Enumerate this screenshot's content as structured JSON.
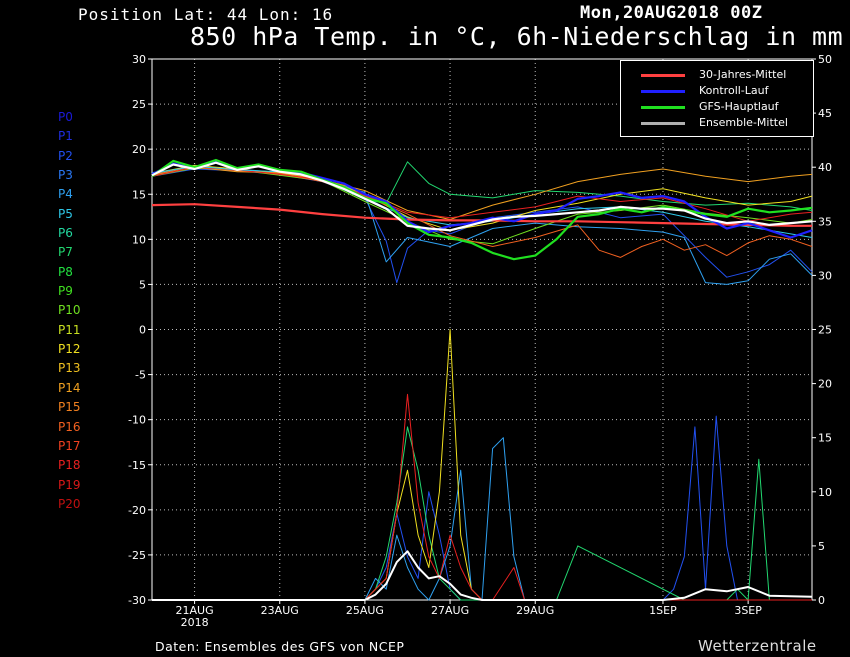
{
  "header": {
    "position": "Position   Lat: 44 Lon: 16",
    "run_date": "Mon,20AUG2018 00Z",
    "title": "850 hPa Temp. in °C, 6h-Niederschlag in mm"
  },
  "members": [
    {
      "label": "P0",
      "color": "#1a1ad8"
    },
    {
      "label": "P1",
      "color": "#1f2ee0"
    },
    {
      "label": "P2",
      "color": "#2250f0"
    },
    {
      "label": "P3",
      "color": "#2a78f5"
    },
    {
      "label": "P4",
      "color": "#2ea0f0"
    },
    {
      "label": "P5",
      "color": "#2ec8e8"
    },
    {
      "label": "P6",
      "color": "#22d8a0"
    },
    {
      "label": "P7",
      "color": "#22d870"
    },
    {
      "label": "P8",
      "color": "#22e040"
    },
    {
      "label": "P9",
      "color": "#40e020"
    },
    {
      "label": "P10",
      "color": "#70e020"
    },
    {
      "label": "P11",
      "color": "#c8e020"
    },
    {
      "label": "P12",
      "color": "#f0e020"
    },
    {
      "label": "P13",
      "color": "#f0c020"
    },
    {
      "label": "P14",
      "color": "#f0a020"
    },
    {
      "label": "P15",
      "color": "#f08020"
    },
    {
      "label": "P16",
      "color": "#f06020"
    },
    {
      "label": "P17",
      "color": "#f04020"
    },
    {
      "label": "P18",
      "color": "#e82020"
    },
    {
      "label": "P19",
      "color": "#d81818"
    },
    {
      "label": "P20",
      "color": "#c01010"
    }
  ],
  "legend": [
    {
      "label": "30-Jahres-Mittel",
      "color": "#ff4040"
    },
    {
      "label": "Kontroll-Lauf",
      "color": "#2020ff"
    },
    {
      "label": "GFS-Hauptlauf",
      "color": "#20e020"
    },
    {
      "label": "Ensemble-Mittel",
      "color": "#b0b0b0"
    }
  ],
  "footer": {
    "credit": "Daten: Ensembles des GFS von NCEP",
    "brand": "Wetterzentrale"
  },
  "chart_data": {
    "type": "line",
    "left_axis": {
      "unit": "°C",
      "ylim": [
        -30,
        30
      ],
      "ticks": [
        30,
        25,
        20,
        15,
        10,
        5,
        0,
        -5,
        -10,
        -15,
        -20,
        -25,
        -30
      ]
    },
    "right_axis": {
      "unit": "mm",
      "ylim": [
        0,
        50
      ],
      "ticks": [
        50,
        45,
        40,
        35,
        30,
        25,
        20,
        15,
        10,
        5,
        0
      ]
    },
    "x_range_hours": [
      0,
      372
    ],
    "x_ticks": [
      {
        "label": "21AUG",
        "sub": "2018",
        "hour": 24
      },
      {
        "label": "23AUG",
        "sub": "",
        "hour": 72
      },
      {
        "label": "25AUG",
        "sub": "",
        "hour": 120
      },
      {
        "label": "27AUG",
        "sub": "",
        "hour": 168
      },
      {
        "label": "29AUG",
        "sub": "",
        "hour": 216
      },
      {
        "label": "1SEP",
        "sub": "",
        "hour": 288
      },
      {
        "label": "3SEP",
        "sub": "",
        "hour": 336
      }
    ],
    "grid": true,
    "legend_position": "top-right",
    "series": [
      {
        "name": "30-Jahres-Mittel",
        "axis": "temp",
        "color": "#ff4040",
        "width": 2.2,
        "x": [
          0,
          24,
          48,
          72,
          96,
          120,
          144,
          168,
          192,
          216,
          240,
          264,
          288,
          312,
          336,
          360,
          372
        ],
        "y": [
          13.8,
          13.9,
          13.6,
          13.3,
          12.8,
          12.4,
          12.2,
          12.1,
          12.1,
          12.0,
          12.0,
          11.9,
          11.8,
          11.7,
          11.6,
          11.5,
          11.5
        ]
      },
      {
        "name": "Kontroll-Lauf",
        "axis": "temp",
        "color": "#2020ff",
        "width": 2.2,
        "x": [
          0,
          12,
          24,
          36,
          48,
          60,
          72,
          84,
          96,
          108,
          120,
          132,
          144,
          156,
          168,
          180,
          192,
          204,
          216,
          228,
          240,
          252,
          264,
          276,
          288,
          300,
          312,
          324,
          336,
          348,
          360,
          372
        ],
        "y": [
          17.2,
          18.4,
          17.9,
          18.6,
          17.8,
          18.2,
          17.6,
          17.4,
          16.8,
          16.2,
          15.0,
          14.2,
          12.0,
          10.8,
          11.5,
          11.8,
          12.4,
          12.0,
          12.8,
          13.2,
          14.5,
          14.8,
          15.2,
          14.6,
          14.8,
          14.2,
          12.5,
          11.2,
          11.8,
          11.0,
          10.2,
          11.0
        ]
      },
      {
        "name": "GFS-Hauptlauf",
        "axis": "temp",
        "color": "#20e020",
        "width": 2.2,
        "x": [
          0,
          12,
          24,
          36,
          48,
          60,
          72,
          84,
          96,
          108,
          120,
          132,
          144,
          156,
          168,
          180,
          192,
          204,
          216,
          228,
          240,
          252,
          264,
          276,
          288,
          300,
          312,
          324,
          336,
          348,
          360,
          372
        ],
        "y": [
          17.0,
          18.7,
          18.0,
          18.8,
          17.9,
          18.3,
          17.7,
          17.5,
          16.6,
          15.8,
          14.6,
          14.0,
          11.8,
          10.5,
          10.2,
          9.6,
          8.5,
          7.8,
          8.2,
          10.0,
          12.5,
          12.8,
          13.4,
          13.0,
          13.6,
          13.2,
          12.8,
          12.5,
          13.4,
          13.0,
          13.2,
          13.5
        ]
      },
      {
        "name": "Ensemble-Mittel",
        "axis": "temp",
        "color": "#ffffff",
        "width": 2.2,
        "x": [
          0,
          12,
          24,
          36,
          48,
          60,
          72,
          84,
          96,
          108,
          120,
          132,
          144,
          156,
          168,
          180,
          192,
          204,
          216,
          228,
          240,
          252,
          264,
          276,
          288,
          300,
          312,
          324,
          336,
          348,
          360,
          372
        ],
        "y": [
          17.1,
          18.3,
          17.8,
          18.5,
          17.7,
          18.1,
          17.5,
          17.2,
          16.5,
          15.6,
          14.5,
          13.4,
          11.5,
          11.2,
          11.0,
          11.6,
          12.2,
          12.5,
          12.6,
          12.8,
          13.0,
          13.2,
          13.6,
          13.4,
          13.4,
          13.2,
          12.3,
          11.8,
          12.0,
          11.6,
          11.8,
          12.0
        ]
      },
      {
        "name": "P1",
        "axis": "temp",
        "color": "#2250f0",
        "width": 1,
        "x": [
          0,
          24,
          48,
          72,
          96,
          120,
          132,
          138,
          144,
          156,
          168,
          192,
          216,
          240,
          264,
          288,
          300,
          312,
          324,
          336,
          348,
          360,
          372
        ],
        "y": [
          17.0,
          17.8,
          17.6,
          17.2,
          16.4,
          14.6,
          9.8,
          5.2,
          9.0,
          11.0,
          10.6,
          12.4,
          13.0,
          13.6,
          12.4,
          12.8,
          10.4,
          8.0,
          5.8,
          6.4,
          7.2,
          8.8,
          6.4
        ]
      },
      {
        "name": "P4",
        "axis": "temp",
        "color": "#2ea0f0",
        "width": 1,
        "x": [
          0,
          24,
          48,
          72,
          96,
          120,
          132,
          144,
          168,
          192,
          216,
          240,
          264,
          288,
          300,
          312,
          324,
          336,
          348,
          360,
          372
        ],
        "y": [
          17.4,
          18.0,
          17.8,
          17.4,
          16.6,
          15.2,
          7.5,
          10.2,
          9.2,
          11.2,
          11.8,
          11.4,
          11.2,
          10.8,
          10.2,
          5.2,
          5.0,
          5.4,
          7.8,
          8.4,
          6.0
        ]
      },
      {
        "name": "P7",
        "axis": "temp",
        "color": "#22d870",
        "width": 1,
        "x": [
          0,
          24,
          48,
          72,
          96,
          120,
          132,
          144,
          156,
          168,
          192,
          216,
          240,
          264,
          288,
          312,
          336,
          360,
          372
        ],
        "y": [
          17.2,
          18.2,
          17.6,
          17.4,
          16.6,
          14.4,
          14.0,
          18.6,
          16.2,
          15.0,
          14.6,
          15.4,
          15.2,
          14.8,
          14.2,
          13.8,
          14.0,
          13.6,
          13.2
        ]
      },
      {
        "name": "P10",
        "axis": "temp",
        "color": "#70e020",
        "width": 1,
        "x": [
          0,
          24,
          48,
          72,
          96,
          120,
          144,
          168,
          192,
          216,
          240,
          264,
          288,
          312,
          336,
          360,
          372
        ],
        "y": [
          17.0,
          17.9,
          17.7,
          17.1,
          16.5,
          14.2,
          12.0,
          10.0,
          9.5,
          11.2,
          12.8,
          13.2,
          13.8,
          12.9,
          12.4,
          11.8,
          12.2
        ]
      },
      {
        "name": "P12",
        "axis": "temp",
        "color": "#f0e020",
        "width": 1,
        "x": [
          0,
          24,
          48,
          72,
          96,
          120,
          144,
          168,
          192,
          216,
          240,
          264,
          288,
          312,
          336,
          360,
          372
        ],
        "y": [
          17.3,
          18.2,
          17.8,
          17.3,
          16.7,
          15.0,
          12.5,
          11.0,
          11.8,
          13.2,
          14.0,
          15.0,
          15.6,
          14.6,
          13.8,
          14.2,
          14.8
        ]
      },
      {
        "name": "P14",
        "axis": "temp",
        "color": "#f0a020",
        "width": 1,
        "x": [
          0,
          24,
          48,
          72,
          96,
          120,
          144,
          168,
          192,
          216,
          240,
          264,
          288,
          312,
          336,
          360,
          372
        ],
        "y": [
          17.1,
          18.0,
          17.5,
          17.4,
          16.6,
          15.4,
          13.2,
          12.2,
          13.8,
          15.0,
          16.4,
          17.2,
          17.8,
          17.0,
          16.4,
          17.0,
          17.2
        ]
      },
      {
        "name": "P16",
        "axis": "temp",
        "color": "#f06020",
        "width": 1,
        "x": [
          0,
          24,
          48,
          72,
          96,
          120,
          144,
          168,
          192,
          216,
          240,
          252,
          264,
          276,
          288,
          300,
          312,
          324,
          336,
          348,
          360,
          372
        ],
        "y": [
          17.2,
          18.1,
          17.6,
          17.3,
          16.4,
          14.8,
          12.8,
          10.4,
          9.2,
          10.2,
          11.6,
          8.8,
          8.0,
          9.2,
          10.0,
          8.8,
          9.4,
          8.2,
          9.6,
          10.4,
          10.0,
          9.2
        ]
      },
      {
        "name": "P18",
        "axis": "temp",
        "color": "#e82020",
        "width": 1,
        "x": [
          0,
          24,
          48,
          72,
          96,
          120,
          144,
          168,
          192,
          216,
          240,
          264,
          288,
          312,
          336,
          360,
          372
        ],
        "y": [
          17.0,
          18.0,
          17.7,
          17.2,
          16.6,
          14.9,
          13.0,
          12.4,
          13.0,
          13.6,
          14.8,
          14.2,
          14.6,
          13.4,
          12.0,
          12.8,
          13.0
        ]
      },
      {
        "name": "P5",
        "axis": "temp",
        "color": "#2ec8e8",
        "width": 1,
        "x": [
          0,
          24,
          48,
          72,
          96,
          120,
          144,
          168,
          192,
          216,
          240,
          264,
          288,
          312,
          336,
          360,
          372
        ],
        "y": [
          17.3,
          18.1,
          17.7,
          17.5,
          16.8,
          14.6,
          12.4,
          11.6,
          12.0,
          12.8,
          13.4,
          13.6,
          13.0,
          12.0,
          11.4,
          10.6,
          10.2
        ]
      },
      {
        "name": "Niederschlag-P1",
        "axis": "precip",
        "color": "#2250f0",
        "width": 1,
        "x": [
          0,
          120,
          126,
          132,
          138,
          144,
          150,
          156,
          162,
          168,
          174,
          180,
          186,
          192,
          198,
          204,
          210,
          216,
          270,
          282,
          288,
          294,
          300,
          306,
          312,
          318,
          324,
          330,
          372
        ],
        "y": [
          0,
          0,
          1,
          3,
          8,
          4,
          2,
          10,
          6,
          1,
          0,
          0,
          0,
          0,
          0,
          0,
          0,
          0,
          0,
          0,
          0,
          1,
          4,
          16,
          1,
          17,
          5,
          0,
          0
        ]
      },
      {
        "name": "Niederschlag-P4",
        "axis": "precip",
        "color": "#2ea0f0",
        "width": 1,
        "x": [
          0,
          120,
          126,
          132,
          138,
          144,
          150,
          156,
          162,
          168,
          174,
          180,
          186,
          192,
          198,
          204,
          210,
          216,
          372
        ],
        "y": [
          0,
          0,
          2,
          1,
          6,
          3,
          1,
          0,
          2,
          5,
          12,
          1,
          0,
          14,
          15,
          4,
          0,
          0,
          0
        ]
      },
      {
        "name": "Niederschlag-P7",
        "axis": "precip",
        "color": "#22d870",
        "width": 1,
        "x": [
          0,
          120,
          126,
          132,
          138,
          144,
          150,
          156,
          162,
          168,
          174,
          216,
          228,
          240,
          300,
          312,
          324,
          330,
          336,
          342,
          348,
          372
        ],
        "y": [
          0,
          0,
          1,
          4,
          9,
          16,
          12,
          6,
          2,
          1,
          0,
          0,
          0,
          5,
          0,
          0,
          0,
          1,
          0,
          13,
          0,
          0
        ]
      },
      {
        "name": "Niederschlag-P12",
        "axis": "precip",
        "color": "#f0e020",
        "width": 1,
        "x": [
          0,
          120,
          132,
          138,
          144,
          150,
          156,
          162,
          168,
          174,
          180,
          186,
          192,
          372
        ],
        "y": [
          0,
          0,
          2,
          8,
          12,
          6,
          3,
          10,
          25,
          6,
          1,
          0,
          0,
          0
        ]
      },
      {
        "name": "Niederschlag-P18",
        "axis": "precip",
        "color": "#e82020",
        "width": 1,
        "x": [
          0,
          120,
          132,
          138,
          144,
          150,
          156,
          162,
          168,
          174,
          180,
          186,
          192,
          204,
          210,
          216,
          372
        ],
        "y": [
          0,
          0,
          2,
          8,
          19,
          9,
          4,
          2,
          6,
          3,
          1,
          0,
          0,
          3,
          0,
          0,
          0
        ]
      },
      {
        "name": "Niederschlag-Mittel",
        "axis": "precip",
        "color": "#ffffff",
        "width": 2,
        "x": [
          0,
          120,
          126,
          132,
          138,
          144,
          150,
          156,
          162,
          168,
          174,
          180,
          186,
          192,
          216,
          288,
          300,
          312,
          324,
          336,
          348,
          372
        ],
        "y": [
          0,
          0,
          0.5,
          1.5,
          3.5,
          4.5,
          3.0,
          2.0,
          2.2,
          1.5,
          0.5,
          0.2,
          0,
          0,
          0,
          0,
          0.2,
          1.0,
          0.8,
          1.2,
          0.4,
          0.3
        ]
      }
    ]
  }
}
